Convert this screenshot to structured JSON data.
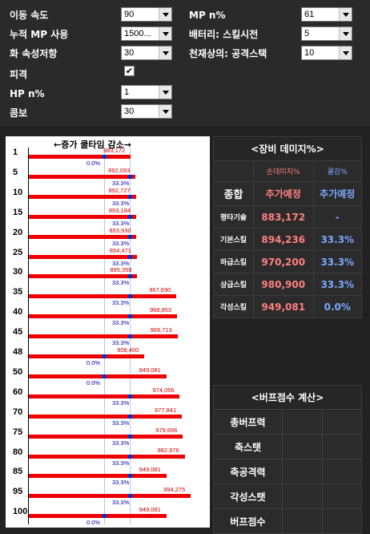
{
  "settings": {
    "move_speed_label": "이동 속도",
    "move_speed_value": "90",
    "cumulative_mp_label": "누적 MP 사용",
    "cumulative_mp_value": "1500...",
    "fire_res_label": "화 속성저항",
    "fire_res_value": "30",
    "hit_label": "피격",
    "hit_checked": "✔",
    "hp_label": "HP n%",
    "hp_value": "1",
    "combo_label": "콤보",
    "combo_value": "30",
    "mp_label": "MP n%",
    "mp_value": "61",
    "battery_label": "배터리: 스킬시전",
    "battery_value": "5",
    "heavenly_label": "천재상의: 공격스택",
    "heavenly_value": "10"
  },
  "chart_data": {
    "type": "bar",
    "title": "←증가  쿨타임  감소→",
    "categories": [
      "1",
      "5",
      "10",
      "15",
      "20",
      "25",
      "30",
      "35",
      "40",
      "45",
      "48",
      "50",
      "60",
      "70",
      "75",
      "80",
      "85",
      "95",
      "100"
    ],
    "series": [
      {
        "values": [
          883172,
          892093,
          892727,
          893184,
          893930,
          894471,
          895359,
          967690,
          968853,
          969713,
          908400,
          949081,
          974056,
          977841,
          979696,
          982976,
          949081,
          994275,
          949081
        ]
      },
      {
        "values": [
          0.0,
          33.3,
          33.3,
          33.3,
          33.3,
          33.3,
          33.3,
          33.3,
          33.3,
          33.3,
          0.0,
          0.0,
          33.3,
          33.3,
          33.3,
          33.3,
          33.3,
          33.3,
          0.0
        ]
      }
    ],
    "labels_damage": [
      "883,172",
      "892,093",
      "892,727",
      "893,184",
      "893,930",
      "894,471",
      "895,359",
      "967,690",
      "968,853",
      "969,713",
      "908,400",
      "949,081",
      "974,056",
      "977,841",
      "979,696",
      "982,976",
      "949,081",
      "994,275",
      "949,081"
    ],
    "labels_cool": [
      "0.0%",
      "33.3%",
      "33.3%",
      "33.3%",
      "33.3%",
      "33.3%",
      "33.3%",
      "33.3%",
      "33.3%",
      "33.3%",
      "0.0%",
      "0.0%",
      "33.3%",
      "33.3%",
      "33.3%",
      "33.3%",
      "33.3%",
      "33.3%",
      "0.0%"
    ],
    "colors": {
      "damage": "#ee0000",
      "cool": "#0033cc"
    }
  },
  "equip": {
    "title": "<장비 데미지%>",
    "col_damage": "순데미지%",
    "col_cool": "쿨감%",
    "total_label": "종합",
    "total_damage": "추가예정",
    "total_cool": "추가예정",
    "rows": [
      {
        "name": "평타기술",
        "damage": "883,172",
        "cool": "-"
      },
      {
        "name": "기본스킬",
        "damage": "894,236",
        "cool": "33.3%"
      },
      {
        "name": "하급스킬",
        "damage": "970,200",
        "cool": "33.3%"
      },
      {
        "name": "상급스킬",
        "damage": "980,900",
        "cool": "33.3%"
      },
      {
        "name": "각성스킬",
        "damage": "949,081",
        "cool": "0.0%"
      }
    ]
  },
  "buff": {
    "title": "<버프점수 계산>",
    "rows": [
      "총버프력",
      "축스탯",
      "축공격력",
      "각성스탯",
      "버프점수"
    ]
  }
}
